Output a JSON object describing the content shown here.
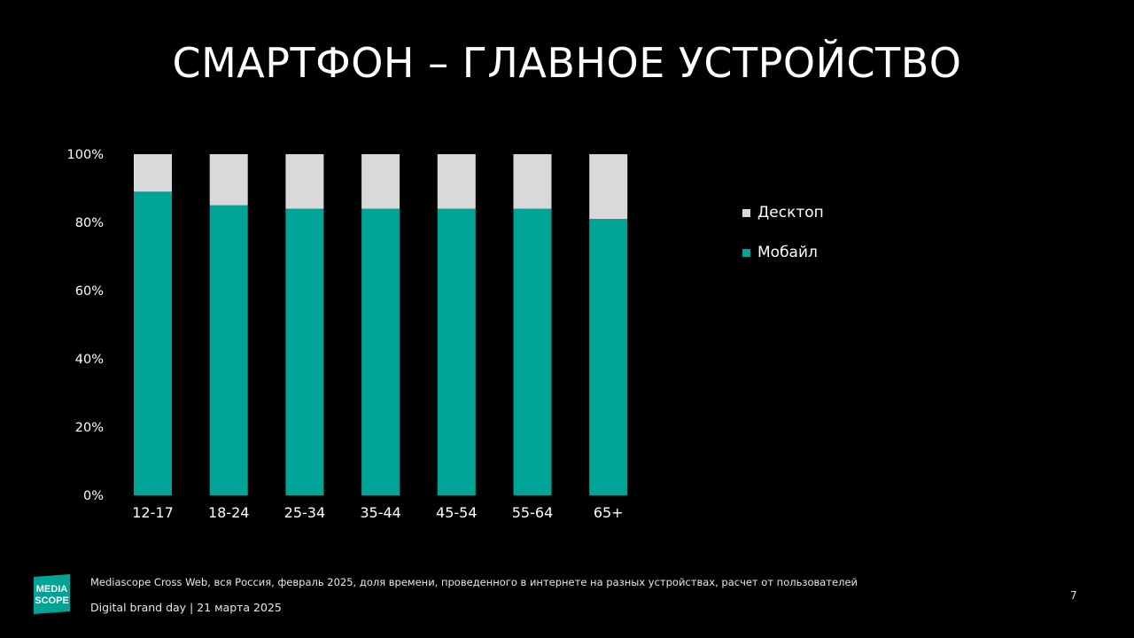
{
  "title": "СМАРТФОН – ГЛАВНОЕ УСТРОЙСТВО",
  "colors": {
    "background": "#000000",
    "mobile": "#00A497",
    "desktop": "#D9D9D9",
    "text": "#FFFFFF"
  },
  "chart_data": {
    "type": "bar",
    "stacked": true,
    "categories": [
      "12-17",
      "18-24",
      "25-34",
      "35-44",
      "45-54",
      "55-64",
      "65+"
    ],
    "series": [
      {
        "name": "Мобайл",
        "values": [
          89,
          85,
          84,
          84,
          84,
          84,
          81
        ]
      },
      {
        "name": "Десктоп",
        "values": [
          11,
          15,
          16,
          16,
          16,
          16,
          19
        ]
      }
    ],
    "y_ticks": [
      "0%",
      "20%",
      "40%",
      "60%",
      "80%",
      "100%"
    ],
    "ylim": [
      0,
      100
    ],
    "grid": false,
    "legend_position": "right",
    "xlabel": "",
    "ylabel": ""
  },
  "legend": [
    {
      "label": "Десктоп",
      "color": "#D9D9D9"
    },
    {
      "label": "Мобайл",
      "color": "#00A497"
    }
  ],
  "footer": {
    "logo_text": "MEDIASCOPE",
    "source": "Mediascope Cross Web, вся Россия, февраль 2025, доля времени, проведенного в интернете на разных устройствах, расчет от пользователей",
    "event": "Digital brand day | 21 марта 2025",
    "page_number": "7"
  }
}
